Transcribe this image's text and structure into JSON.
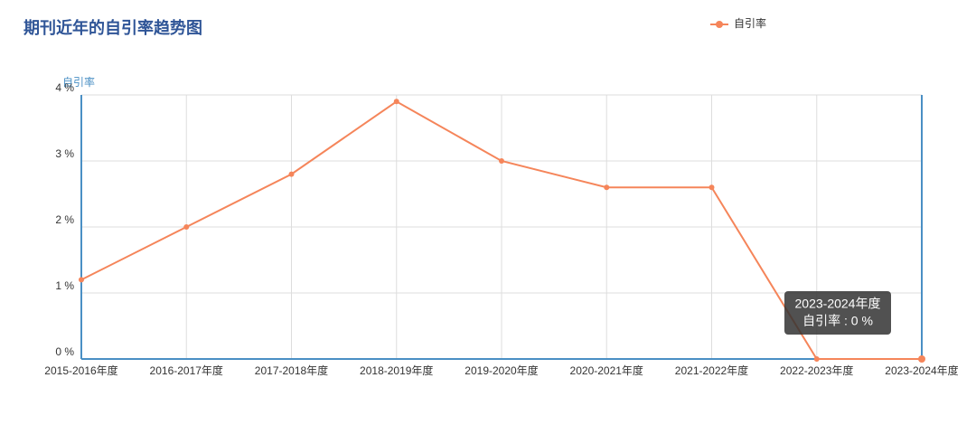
{
  "chart_data": {
    "type": "line",
    "title": "期刊近年的自引率趋势图",
    "y_label": "自引率",
    "categories": [
      "2015-2016年度",
      "2016-2017年度",
      "2017-2018年度",
      "2018-2019年度",
      "2019-2020年度",
      "2020-2021年度",
      "2021-2022年度",
      "2022-2023年度",
      "2023-2024年度"
    ],
    "series": [
      {
        "name": "自引率",
        "color": "#f5855a",
        "values": [
          1.2,
          2.0,
          2.8,
          3.9,
          3.0,
          2.6,
          2.6,
          0,
          0
        ]
      }
    ],
    "ylim": [
      0,
      4
    ],
    "yticks": [
      {
        "value": 0,
        "label": "0 %"
      },
      {
        "value": 1,
        "label": "1 %"
      },
      {
        "value": 2,
        "label": "2 %"
      },
      {
        "value": 3,
        "label": "3 %"
      },
      {
        "value": 4,
        "label": "4 %"
      }
    ],
    "grid": true,
    "legend": "top-right",
    "tooltip": {
      "title": "2023-2024年度",
      "text": "自引率 : 0 %"
    }
  }
}
